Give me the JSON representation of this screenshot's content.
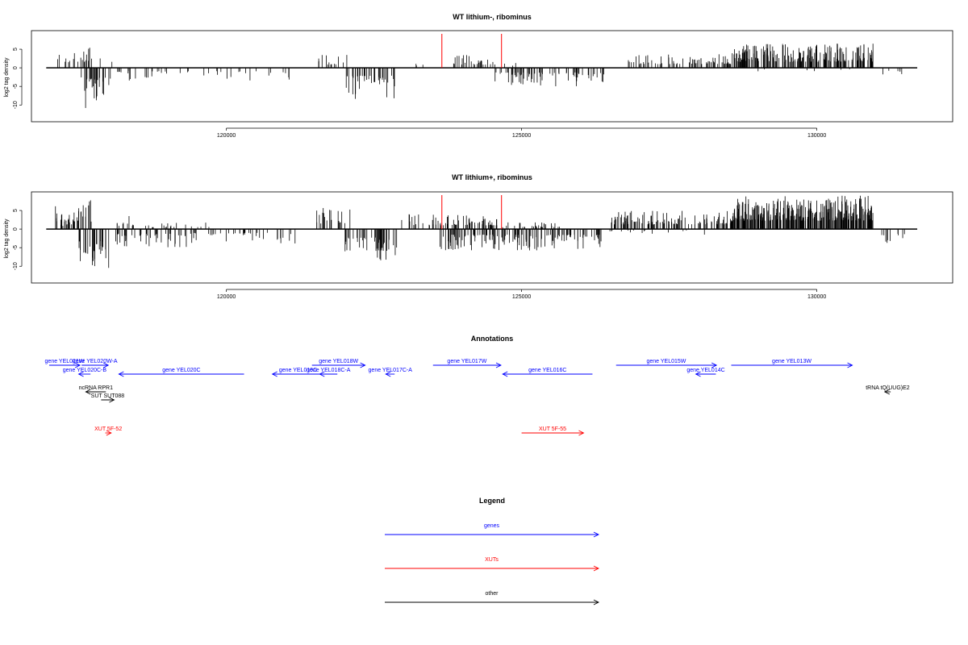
{
  "chart_data": [
    {
      "type": "bar",
      "title": "WT lithium-, ribominus",
      "ylabel": "log2 tag density",
      "xlim": [
        116700,
        132300
      ],
      "ylim": [
        -14.5,
        10
      ],
      "yticks": [
        -10,
        -5,
        0,
        5
      ],
      "xticks": [
        120000,
        125000,
        130000
      ],
      "xtick_labels": [
        "120000",
        "125000",
        "130000"
      ],
      "baseline_range": [
        116950,
        131700
      ],
      "markers": [
        123650,
        124660
      ],
      "marker_color": "#ff0000",
      "positive_clusters": [
        {
          "range": [
            117100,
            117800
          ],
          "count": 20,
          "max": 6
        },
        {
          "range": [
            117850,
            117950
          ],
          "count": 1,
          "max": 3
        },
        {
          "range": [
            118050,
            118150
          ],
          "count": 1,
          "max": 3
        },
        {
          "range": [
            121550,
            122050
          ],
          "count": 14,
          "max": 3.5
        },
        {
          "range": [
            123200,
            123400
          ],
          "count": 3,
          "max": 2
        },
        {
          "range": [
            123800,
            124550
          ],
          "count": 28,
          "max": 3.5
        },
        {
          "range": [
            124700,
            124900
          ],
          "count": 3,
          "max": 2
        },
        {
          "range": [
            126800,
            128600
          ],
          "count": 75,
          "max": 4
        },
        {
          "range": [
            128600,
            130950
          ],
          "count": 220,
          "max": 6.5
        }
      ],
      "negative_clusters": [
        {
          "range": [
            117600,
            117850
          ],
          "count": 12,
          "max": 11
        },
        {
          "range": [
            117500,
            118050
          ],
          "count": 18,
          "max": 10
        },
        {
          "range": [
            118100,
            119400
          ],
          "count": 22,
          "max": 3.5
        },
        {
          "range": [
            119600,
            121100
          ],
          "count": 18,
          "max": 3.5
        },
        {
          "range": [
            122000,
            122850
          ],
          "count": 38,
          "max": 8.5
        },
        {
          "range": [
            124550,
            126400
          ],
          "count": 75,
          "max": 5
        },
        {
          "range": [
            128600,
            130750
          ],
          "count": 6,
          "max": 1.5
        },
        {
          "range": [
            131050,
            131450
          ],
          "count": 6,
          "max": 3
        }
      ]
    },
    {
      "type": "bar",
      "title": "WT lithium+, ribominus",
      "ylabel": "log2 tag density",
      "xlim": [
        116700,
        132300
      ],
      "ylim": [
        -14.5,
        10
      ],
      "yticks": [
        -10,
        -5,
        0,
        5
      ],
      "xticks": [
        120000,
        125000,
        130000
      ],
      "xtick_labels": [
        "120000",
        "125000",
        "130000"
      ],
      "baseline_range": [
        116950,
        131700
      ],
      "markers": [
        123650,
        124660
      ],
      "marker_color": "#ff0000",
      "positive_clusters": [
        {
          "range": [
            116950,
            117400
          ],
          "count": 8,
          "max": 3
        },
        {
          "range": [
            117100,
            117800
          ],
          "count": 30,
          "max": 8
        },
        {
          "range": [
            118050,
            118450
          ],
          "count": 10,
          "max": 3.5
        },
        {
          "range": [
            118600,
            119800
          ],
          "count": 20,
          "max": 2
        },
        {
          "range": [
            121500,
            122100
          ],
          "count": 20,
          "max": 6
        },
        {
          "range": [
            122950,
            123350
          ],
          "count": 10,
          "max": 4
        },
        {
          "range": [
            123400,
            124600
          ],
          "count": 60,
          "max": 4
        },
        {
          "range": [
            124650,
            125700
          ],
          "count": 30,
          "max": 2
        },
        {
          "range": [
            126500,
            128600
          ],
          "count": 130,
          "max": 5
        },
        {
          "range": [
            128600,
            130950
          ],
          "count": 330,
          "max": 9
        }
      ],
      "negative_clusters": [
        {
          "range": [
            117500,
            118050
          ],
          "count": 30,
          "max": 13
        },
        {
          "range": [
            118100,
            119400
          ],
          "count": 45,
          "max": 5
        },
        {
          "range": [
            119400,
            121200
          ],
          "count": 40,
          "max": 4
        },
        {
          "range": [
            122000,
            122900
          ],
          "count": 45,
          "max": 9
        },
        {
          "range": [
            123600,
            126350
          ],
          "count": 150,
          "max": 6
        },
        {
          "range": [
            126400,
            128700
          ],
          "count": 15,
          "max": 1.5
        },
        {
          "range": [
            131050,
            131550
          ],
          "count": 10,
          "max": 5
        }
      ]
    }
  ],
  "annotations": {
    "title": "Annotations",
    "features": [
      {
        "label": "gene YEL021W",
        "start": 117000,
        "end": 117520,
        "strand": "+",
        "row": 0,
        "color": "#0000ff"
      },
      {
        "label": "gene YEL020W-A",
        "start": 117550,
        "end": 118000,
        "strand": "+",
        "row": 0,
        "color": "#0000ff"
      },
      {
        "label": "gene YEL020C-B",
        "start": 117500,
        "end": 117700,
        "strand": "-",
        "row": 1,
        "color": "#0000ff"
      },
      {
        "label": "gene YEL020C",
        "start": 118180,
        "end": 120300,
        "strand": "-",
        "row": 1,
        "color": "#0000ff"
      },
      {
        "label": "gene YEL019C",
        "start": 120780,
        "end": 121650,
        "strand": "-",
        "row": 1,
        "color": "#0000ff"
      },
      {
        "label": "gene YEL018C-A",
        "start": 121580,
        "end": 121880,
        "strand": "-",
        "row": 1,
        "color": "#0000ff"
      },
      {
        "label": "gene YEL018W",
        "start": 121450,
        "end": 122350,
        "strand": "+",
        "row": 0,
        "color": "#0000ff"
      },
      {
        "label": "gene YEL017C-A",
        "start": 122700,
        "end": 122850,
        "strand": "-",
        "row": 1,
        "color": "#0000ff"
      },
      {
        "label": "gene YEL017W",
        "start": 123500,
        "end": 124650,
        "strand": "+",
        "row": 0,
        "color": "#0000ff"
      },
      {
        "label": "gene YEL016C",
        "start": 124680,
        "end": 126200,
        "strand": "-",
        "row": 1,
        "color": "#0000ff"
      },
      {
        "label": "gene YEL015W",
        "start": 126600,
        "end": 128300,
        "strand": "+",
        "row": 0,
        "color": "#0000ff"
      },
      {
        "label": "gene YEL014C",
        "start": 127950,
        "end": 128290,
        "strand": "-",
        "row": 1,
        "color": "#0000ff"
      },
      {
        "label": "gene YEL013W",
        "start": 128550,
        "end": 130600,
        "strand": "+",
        "row": 0,
        "color": "#0000ff"
      },
      {
        "label": "ncRNA RPR1",
        "start": 117620,
        "end": 117960,
        "strand": "-",
        "row": 2,
        "color": "#000000"
      },
      {
        "label": "SUT SUT088",
        "start": 117880,
        "end": 118100,
        "strand": "+",
        "row": 3,
        "color": "#000000"
      },
      {
        "label": "tRNA tQ(UUG)E2",
        "start": 131150,
        "end": 131250,
        "strand": "-",
        "row": 2,
        "color": "#000000"
      },
      {
        "label": "XUT 5F-52",
        "start": 117950,
        "end": 118050,
        "strand": "+",
        "row": 5,
        "color": "#ff0000"
      },
      {
        "label": "XUT 5F-55",
        "start": 125000,
        "end": 126050,
        "strand": "+",
        "row": 5,
        "color": "#ff0000"
      }
    ]
  },
  "legend": {
    "title": "Legend",
    "items": [
      {
        "label": "genes",
        "color": "#0000ff"
      },
      {
        "label": "XUTs",
        "color": "#ff0000"
      },
      {
        "label": "other",
        "color": "#000000"
      }
    ]
  }
}
